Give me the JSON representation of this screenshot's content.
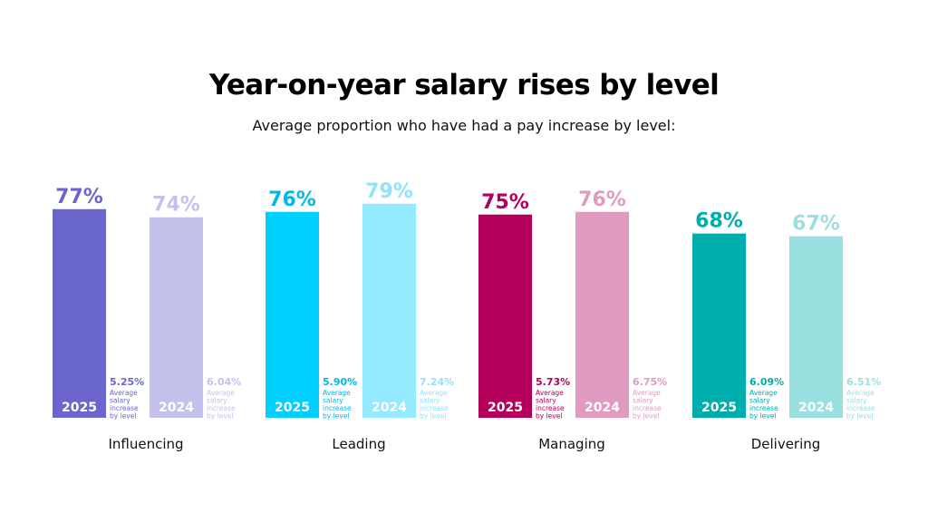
{
  "header": {
    "title": "Year-on-year salary rises by level",
    "subtitle": "Average proportion who have had a pay increase by level:"
  },
  "chart_data": {
    "type": "bar",
    "title": "Year-on-year salary rises by level",
    "subtitle": "Average proportion who have had a pay increase by level:",
    "categories": [
      "Influencing",
      "Leading",
      "Managing",
      "Delivering"
    ],
    "series": [
      {
        "name": "2025",
        "values": [
          77,
          76,
          75,
          68
        ],
        "value_labels": [
          "77%",
          "76%",
          "75%",
          "68%"
        ],
        "salary_increase": [
          "5.25%",
          "5.90%",
          "5.73%",
          "6.09%"
        ],
        "colors": [
          "#6a66cc",
          "#00cfff",
          "#b5005b",
          "#00adad"
        ]
      },
      {
        "name": "2024",
        "values": [
          74,
          79,
          76,
          67
        ],
        "value_labels": [
          "74%",
          "79%",
          "76%",
          "67%"
        ],
        "salary_increase": [
          "6.04%",
          "7.24%",
          "6.75%",
          "6.51%"
        ],
        "colors": [
          "#c4c2ec",
          "#94eaff",
          "#e19bc0",
          "#9be0e0"
        ]
      }
    ],
    "side_note_label": [
      "Average",
      "salary",
      "increase",
      "by level"
    ],
    "label_colors_2025": [
      "#6a66cc",
      "#00b8ea",
      "#b5005b",
      "#00adad"
    ],
    "label_colors_2024": [
      "#c4c2ec",
      "#8fe3fb",
      "#e19bc0",
      "#9be0e0"
    ],
    "ylim": [
      0,
      100
    ],
    "grid": false,
    "legend": "none"
  }
}
